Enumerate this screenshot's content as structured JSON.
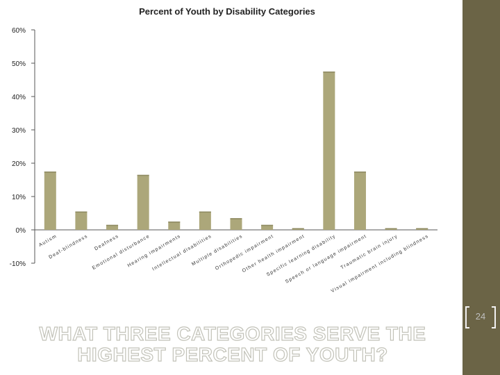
{
  "colors": {
    "bar": "#aca77a",
    "sidebar": "#6b6446",
    "bracket": "#f2f2f2",
    "axis": "#555555"
  },
  "page_number": "24",
  "headline": {
    "line1": "WHAT THREE CATEGORIES SERVE THE",
    "line2": "HIGHEST PERCENT OF YOUTH?"
  },
  "chart_data": {
    "type": "bar",
    "title": "Percent of Youth by Disability Categories",
    "xlabel": "",
    "ylabel": "",
    "ylim": [
      -10,
      60
    ],
    "y_ticks": [
      -10,
      0,
      10,
      20,
      30,
      40,
      50,
      60
    ],
    "y_tick_labels": [
      "-10%",
      "0%",
      "10%",
      "20%",
      "30%",
      "40%",
      "50%",
      "60%"
    ],
    "grid": false,
    "categories": [
      "Autism",
      "Deaf-blindness",
      "Deafness",
      "Emotional disturbance",
      "Hearing impairments",
      "Intellectual disabilities",
      "Multiple disabilities",
      "Orthopedic impairment",
      "Other health impairment",
      "Specific learning disability",
      "Speech or language impairment",
      "Traumatic brain injury",
      "Visual impairment including blindness"
    ],
    "values": [
      17.5,
      5.5,
      1.5,
      16.5,
      2.5,
      5.5,
      3.5,
      1.5,
      0.5,
      47.5,
      17.5,
      0.5,
      0.5
    ]
  }
}
